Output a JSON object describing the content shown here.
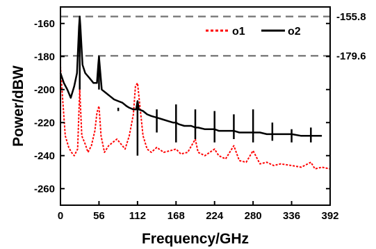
{
  "chart_data": {
    "type": "line",
    "xlabel": "Frequency/GHz",
    "ylabel": "Power/dBW",
    "xlim": [
      0,
      392
    ],
    "ylim": [
      -270,
      -150
    ],
    "x_ticks": [
      "0",
      "56",
      "112",
      "168",
      "224",
      "280",
      "336",
      "392"
    ],
    "y_ticks": [
      "-160",
      "-180",
      "-200",
      "-220",
      "-240",
      "-260"
    ],
    "reference_lines": [
      {
        "label": "-155.8",
        "value": -155.8
      },
      {
        "label": "-179.6",
        "value": -179.6
      }
    ],
    "legend_position": "top-right",
    "series": [
      {
        "name": "o1",
        "color": "#ff0000",
        "style": "dotted",
        "points": [
          [
            0,
            -186
          ],
          [
            3,
            -205
          ],
          [
            7,
            -228
          ],
          [
            12,
            -235
          ],
          [
            16,
            -238
          ],
          [
            20,
            -240
          ],
          [
            25,
            -236
          ],
          [
            28,
            -200
          ],
          [
            31,
            -228
          ],
          [
            36,
            -233
          ],
          [
            40,
            -238
          ],
          [
            45,
            -234
          ],
          [
            50,
            -225
          ],
          [
            53,
            -214
          ],
          [
            56,
            -210
          ],
          [
            59,
            -228
          ],
          [
            64,
            -238
          ],
          [
            70,
            -234
          ],
          [
            76,
            -232
          ],
          [
            82,
            -230
          ],
          [
            88,
            -233
          ],
          [
            94,
            -236
          ],
          [
            100,
            -228
          ],
          [
            106,
            -215
          ],
          [
            109,
            -198
          ],
          [
            112,
            -196
          ],
          [
            115,
            -208
          ],
          [
            120,
            -228
          ],
          [
            126,
            -236
          ],
          [
            132,
            -238
          ],
          [
            140,
            -235
          ],
          [
            150,
            -238
          ],
          [
            160,
            -237
          ],
          [
            168,
            -236
          ],
          [
            175,
            -239
          ],
          [
            185,
            -238
          ],
          [
            196,
            -230
          ],
          [
            200,
            -238
          ],
          [
            210,
            -240
          ],
          [
            224,
            -236
          ],
          [
            230,
            -240
          ],
          [
            240,
            -242
          ],
          [
            252,
            -234
          ],
          [
            260,
            -243
          ],
          [
            270,
            -244
          ],
          [
            280,
            -237
          ],
          [
            290,
            -245
          ],
          [
            300,
            -244
          ],
          [
            310,
            -246
          ],
          [
            320,
            -245
          ],
          [
            336,
            -246
          ],
          [
            350,
            -247
          ],
          [
            364,
            -244
          ],
          [
            370,
            -248
          ],
          [
            380,
            -247
          ],
          [
            392,
            -248
          ]
        ]
      },
      {
        "name": "o2",
        "color": "#000000",
        "style": "solid",
        "points": [
          [
            0,
            -190
          ],
          [
            5,
            -196
          ],
          [
            10,
            -200
          ],
          [
            15,
            -205
          ],
          [
            20,
            -198
          ],
          [
            24,
            -190
          ],
          [
            27,
            -162
          ],
          [
            28,
            -155.8
          ],
          [
            29,
            -162
          ],
          [
            32,
            -185
          ],
          [
            36,
            -190
          ],
          [
            42,
            -193
          ],
          [
            48,
            -196
          ],
          [
            53,
            -196
          ],
          [
            55,
            -185
          ],
          [
            56,
            -180
          ],
          [
            57,
            -185
          ],
          [
            60,
            -200
          ],
          [
            66,
            -202
          ],
          [
            72,
            -204
          ],
          [
            78,
            -206
          ],
          [
            84,
            -207
          ],
          [
            90,
            -208
          ],
          [
            96,
            -210
          ],
          [
            100,
            -211
          ],
          [
            106,
            -212
          ],
          [
            110,
            -212
          ],
          [
            112,
            -207
          ],
          [
            114,
            -212
          ],
          [
            120,
            -213
          ],
          [
            126,
            -215
          ],
          [
            132,
            -216
          ],
          [
            140,
            -217
          ],
          [
            148,
            -218
          ],
          [
            156,
            -219
          ],
          [
            164,
            -220
          ],
          [
            168,
            -220
          ],
          [
            172,
            -221
          ],
          [
            180,
            -222
          ],
          [
            190,
            -222
          ],
          [
            196,
            -223
          ],
          [
            200,
            -223
          ],
          [
            210,
            -224
          ],
          [
            220,
            -224
          ],
          [
            224,
            -224
          ],
          [
            230,
            -225
          ],
          [
            240,
            -225
          ],
          [
            252,
            -225
          ],
          [
            260,
            -226
          ],
          [
            270,
            -226
          ],
          [
            280,
            -226
          ],
          [
            290,
            -226
          ],
          [
            300,
            -227
          ],
          [
            310,
            -227
          ],
          [
            320,
            -227
          ],
          [
            336,
            -227
          ],
          [
            350,
            -228
          ],
          [
            364,
            -228
          ],
          [
            370,
            -228
          ],
          [
            380,
            -228
          ]
        ]
      }
    ],
    "o2_spikes": [
      {
        "x": 28,
        "top": -155.8,
        "bottom": -200
      },
      {
        "x": 56,
        "top": -180,
        "bottom": -200
      },
      {
        "x": 84,
        "top": -211,
        "bottom": -213
      },
      {
        "x": 112,
        "top": -207,
        "bottom": -240
      },
      {
        "x": 140,
        "top": -212,
        "bottom": -226
      },
      {
        "x": 168,
        "top": -209,
        "bottom": -232
      },
      {
        "x": 196,
        "top": -212,
        "bottom": -230
      },
      {
        "x": 224,
        "top": -213,
        "bottom": -232
      },
      {
        "x": 252,
        "top": -215,
        "bottom": -230
      },
      {
        "x": 280,
        "top": -212,
        "bottom": -232
      },
      {
        "x": 308,
        "top": -220,
        "bottom": -231
      },
      {
        "x": 336,
        "top": -224,
        "bottom": -232
      },
      {
        "x": 364,
        "top": -223,
        "bottom": -232
      }
    ]
  }
}
